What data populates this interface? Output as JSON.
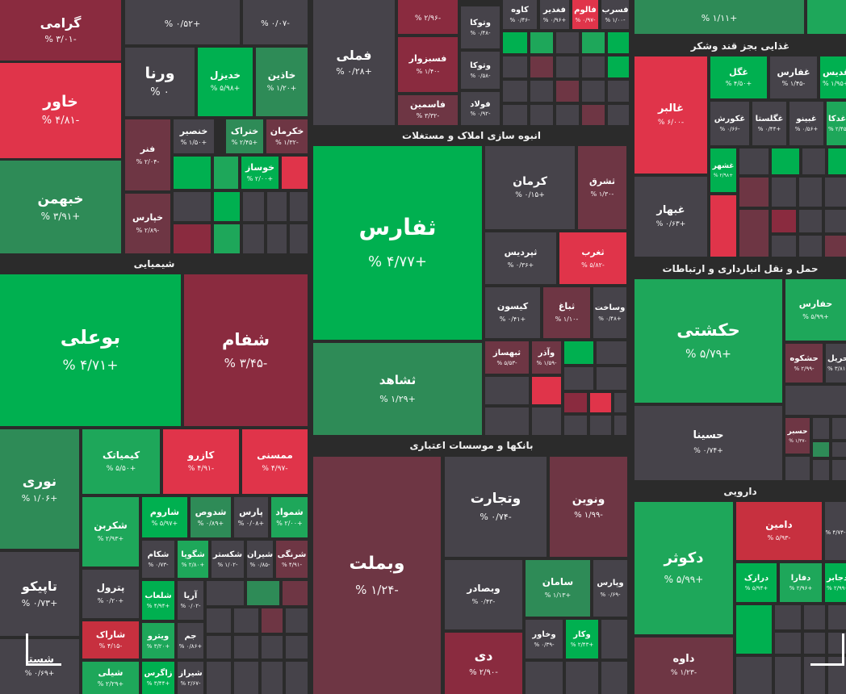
{
  "sectors": {
    "chemicals": "شیمیایی",
    "construction": "انبوه سازی املاک و مستغلات",
    "banks": "بانکها و موسسات اعتباری",
    "food": "غذایی بجز قند وشکر",
    "transport": "حمل و نقل انبارداری و ارتباطات",
    "pharma": "دارویی"
  },
  "colors": {
    "strong_gain": "#00b050",
    "gain": "#1ea75a",
    "mild_gain": "#2e8b57",
    "neutral": "#46434a",
    "mild_loss": "#6e3644",
    "loss": "#8a2b3f",
    "strong_loss": "#c7303f"
  },
  "tiles": {
    "garami": {
      "name": "گرامی",
      "pct": "-۳/۰۱ %"
    },
    "c4": {
      "name": "",
      "pct": "+۰/۵۲ %"
    },
    "c5": {
      "name": "",
      "pct": "-۰/۰۷ %"
    },
    "varna": {
      "name": "ورنا",
      "pct": "۰ %"
    },
    "khadizel": {
      "name": "خدیزل",
      "pct": "+۵/۹۸ %"
    },
    "khazin": {
      "name": "خاذین",
      "pct": "+۱/۲۰ %"
    },
    "khavar": {
      "name": "خاور",
      "pct": "-۴/۸۱ %"
    },
    "khonsir": {
      "name": "خنصیر",
      "pct": "+۱/۵۰ %"
    },
    "khatrak": {
      "name": "ختراک",
      "pct": "+۲/۴۵ %"
    },
    "khakarman": {
      "name": "خکرمان",
      "pct": "-۱/۳۲ %"
    },
    "fanar": {
      "name": "فنر",
      "pct": "-۲/۰۴ %"
    },
    "khosaz": {
      "name": "خوساز",
      "pct": "+۲/۰۰ %"
    },
    "khobahman": {
      "name": "خبهمن",
      "pct": "+۳/۹۱ %"
    },
    "khepars": {
      "name": "خپارس",
      "pct": "-۲/۸۹ %"
    },
    "boali": {
      "name": "بوعلی",
      "pct": "+۴/۷۱ %"
    },
    "shafam": {
      "name": "شفام",
      "pct": "-۳/۴۵ %"
    },
    "noori": {
      "name": "نوری",
      "pct": "+۱/۰۶ %"
    },
    "kimiatek": {
      "name": "کیمیاتک",
      "pct": "+۵/۵۰ %"
    },
    "karazo": {
      "name": "کازرو",
      "pct": "-۴/۹۱ %"
    },
    "momsi": {
      "name": "ممسنی",
      "pct": "-۴/۹۷ %"
    },
    "shekarbon": {
      "name": "شکربن",
      "pct": "+۲/۹۳ %"
    },
    "sharum": {
      "name": "شاروم",
      "pct": "+۵/۹۷ %"
    },
    "shodus": {
      "name": "شدوص",
      "pct": "+۰/۸۹ %"
    },
    "pars": {
      "name": "پارس",
      "pct": "+۰/۰۸ %"
    },
    "shomvad": {
      "name": "شمواد",
      "pct": "+۲/۰۰ %"
    },
    "tapiko": {
      "name": "تاپیکو",
      "pct": "+۰/۷۳ %"
    },
    "petrol": {
      "name": "پترول",
      "pct": "+۰/۲۰ %"
    },
    "shakam": {
      "name": "شکام",
      "pct": "-۰/۷۳ %"
    },
    "sheguya": {
      "name": "شگویا",
      "pct": "+۲/۸۰ %"
    },
    "shekastar": {
      "name": "شکستر",
      "pct": "-۱/۰۲ %"
    },
    "shiran": {
      "name": "شیران",
      "pct": "-۰/۸۵ %"
    },
    "sharangi": {
      "name": "شرنگی",
      "pct": "-۴/۹۱ %"
    },
    "shalaab": {
      "name": "شلعاب",
      "pct": "+۴/۹۴ %"
    },
    "arya": {
      "name": "آریا",
      "pct": "-۰/۰۲ %"
    },
    "sharak": {
      "name": "شاراک",
      "pct": "-۴/۱۵ %"
    },
    "vitro": {
      "name": "ویترو",
      "pct": "+۳/۲۰ %"
    },
    "jam": {
      "name": "جم",
      "pct": "+۰/۸۶ %"
    },
    "shasta": {
      "name": "شستا",
      "pct": "+۰/۶۹ %"
    },
    "shili": {
      "name": "شیلی",
      "pct": "+۲/۲۹ %"
    },
    "zagros": {
      "name": "زاگرس",
      "pct": "+۳/۴۴ %"
    },
    "shiraz": {
      "name": "شیراز",
      "pct": "-۲/۶۷ %"
    },
    "c9": {
      "name": "",
      "pct": "-۲/۹۶ %"
    },
    "vatuka": {
      "name": "وتوکا",
      "pct": "-۰/۴۸ %"
    },
    "kave": {
      "name": "کاوه",
      "pct": "-۰/۴۶ %"
    },
    "faghadir": {
      "name": "فغدیر",
      "pct": "+۰/۹۶ %"
    },
    "falum": {
      "name": "فالوم",
      "pct": "-۰/۹۷ %"
    },
    "fasreb": {
      "name": "فسرب",
      "pct": "-۱/۰۰ %"
    },
    "fameli": {
      "name": "فملی",
      "pct": "+۰/۲۸ %"
    },
    "fasabzevar": {
      "name": "فسبزوار",
      "pct": "-۱/۴۰ %"
    },
    "vatouka2": {
      "name": "وتوکا",
      "pct": "-۰/۵۸ %"
    },
    "fasaba": {
      "name": "فصبا",
      "pct": "-۰/۰۸ %"
    },
    "faulad": {
      "name": "فولاد",
      "pct": "-۰/۹۲ %"
    },
    "fasamin": {
      "name": "فاسمین",
      "pct": "-۳/۳۲ %"
    },
    "sefars": {
      "name": "ثفارس",
      "pct": "+۴/۷۷ %"
    },
    "kerman": {
      "name": "کرمان",
      "pct": "+۰/۱۵ %"
    },
    "sashregh": {
      "name": "ثشرق",
      "pct": "-۱/۳۰ %"
    },
    "sashahed": {
      "name": "ثشاهد",
      "pct": "+۱/۲۹ %"
    },
    "tabardis": {
      "name": "ثپردیس",
      "pct": "+۰/۳۶ %"
    },
    "sagharb": {
      "name": "ثغرب",
      "pct": "-۵/۸۲ %"
    },
    "kisun": {
      "name": "کیسون",
      "pct": "+۰/۴۱ %"
    },
    "sabagh": {
      "name": "ثباغ",
      "pct": "-۱/۱۰ %"
    },
    "vasakht": {
      "name": "وساخت",
      "pct": "+۰/۴۸ %"
    },
    "sabahsaz": {
      "name": "ثبهساز",
      "pct": "-۵/۵۳ %"
    },
    "vaazar": {
      "name": "وآذر",
      "pct": "-۱/۵۹ %"
    },
    "vabemellat": {
      "name": "وبملت",
      "pct": "-۱/۲۴ %"
    },
    "vatejarat": {
      "name": "وتجارت",
      "pct": "-۰/۷۴ %"
    },
    "vanovin": {
      "name": "ونوین",
      "pct": "-۱/۹۹ %"
    },
    "vabsader": {
      "name": "وبصادر",
      "pct": "-۰/۴۳ %"
    },
    "saman": {
      "name": "سامان",
      "pct": "+۱/۱۳ %"
    },
    "vaparsi": {
      "name": "وپارس",
      "pct": "-۰/۶۹ %"
    },
    "di": {
      "name": "دی",
      "pct": "-۲/۹۰ %"
    },
    "vakhavar": {
      "name": "وخاور",
      "pct": "-۰/۳۹ %"
    },
    "vakar": {
      "name": "وکار",
      "pct": "+۲/۴۳ %"
    },
    "c10": {
      "name": "",
      "pct": "+۱/۱۱ %"
    },
    "ghaleg": {
      "name": "غگل",
      "pct": "+۴/۵۰ %"
    },
    "ghafars": {
      "name": "غفارس",
      "pct": "-۱/۴۵ %"
    },
    "ghadis": {
      "name": "غدیس",
      "pct": "+۱/۹۵ %"
    },
    "ghaleb": {
      "name": "غالبر",
      "pct": "-۶/۰۰ %"
    },
    "ghakoresh": {
      "name": "غکورش",
      "pct": "-۰/۶۶ %"
    },
    "ghaglasta": {
      "name": "غگلستا",
      "pct": "+۰/۴۴ %"
    },
    "ghabino": {
      "name": "غبینو",
      "pct": "+۰/۵۶ %"
    },
    "ghadka": {
      "name": "غدکا",
      "pct": "+۲/۴۵ %"
    },
    "ghashahr": {
      "name": "غشهر",
      "pct": "+۲/۹۸ %"
    },
    "ghabahar": {
      "name": "غبهار",
      "pct": "+۰/۶۳ %"
    },
    "hekeshti": {
      "name": "حکشتی",
      "pct": "+۵/۷۹ %"
    },
    "hafars": {
      "name": "حفارس",
      "pct": "+۵/۹۹ %"
    },
    "hashkuh": {
      "name": "حشکوه",
      "pct": "-۲/۹۹ %"
    },
    "haril": {
      "name": "حریل",
      "pct": "-۳/۸۱ %"
    },
    "hasina": {
      "name": "حسینا",
      "pct": "+۰/۷۴ %"
    },
    "hasbir": {
      "name": "حسبر",
      "pct": "-۱/۳۷ %"
    },
    "dakosar": {
      "name": "دکوثر",
      "pct": "+۵/۹۹ %"
    },
    "damin": {
      "name": "دامین",
      "pct": "-۵/۹۳ %"
    },
    "c11": {
      "name": "",
      "pct": "-۴/۷۴ %"
    },
    "darazak": {
      "name": "درازک",
      "pct": "+۵/۹۴ %"
    },
    "dafara": {
      "name": "دفارا",
      "pct": "+۲/۹۶ %"
    },
    "dajabr": {
      "name": "دجابر",
      "pct": "+۲/۹۹ %"
    },
    "dalveh": {
      "name": "داوه",
      "pct": "-۱/۲۳ %"
    }
  }
}
